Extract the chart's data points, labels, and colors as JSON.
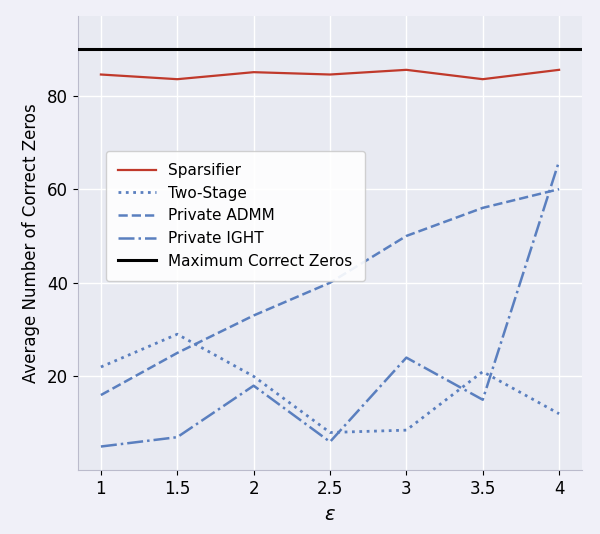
{
  "x": [
    1.0,
    1.5,
    2.0,
    2.5,
    3.0,
    3.5,
    4.0
  ],
  "sparsifier": [
    84.5,
    83.5,
    85.0,
    84.5,
    85.5,
    83.5,
    85.5
  ],
  "two_stage": [
    22.0,
    29.0,
    20.0,
    8.0,
    8.5,
    21.0,
    12.0
  ],
  "private_admm": [
    16.0,
    25.0,
    33.0,
    40.0,
    50.0,
    56.0,
    60.0
  ],
  "private_ight": [
    5.0,
    7.0,
    18.0,
    6.0,
    24.0,
    15.0,
    66.0
  ],
  "max_correct_zeros": 90.0,
  "xlabel": "$\\epsilon$",
  "ylabel": "Average Number of Correct Zeros",
  "xticks": [
    1.0,
    1.5,
    2.0,
    2.5,
    3.0,
    3.5,
    4.0
  ],
  "xtick_labels": [
    "1",
    "1.5",
    "2",
    "2.5",
    "3",
    "3.5",
    "4"
  ],
  "ylim": [
    0,
    97
  ],
  "yticks": [
    20,
    40,
    60,
    80
  ],
  "line_color_sparsifier": "#c0392b",
  "line_color_blue": "#5a7fbf",
  "bg_color": "#e8eaf2",
  "legend_labels": [
    "Sparsifier",
    "Two-Stage",
    "Private ADMM",
    "Private IGHT",
    "Maximum Correct Zeros"
  ],
  "fig_width": 6.0,
  "fig_height": 5.34
}
